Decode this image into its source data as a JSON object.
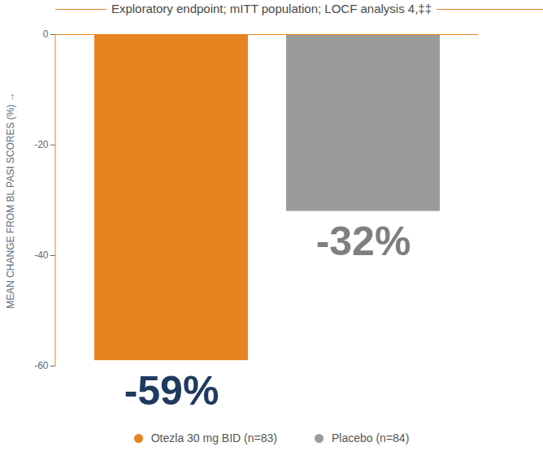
{
  "chart_data": {
    "type": "bar",
    "title": "Exploratory endpoint; mITT population; LOCF analysis 4,‡‡",
    "y_label": "MEAN CHANGE FROM BL PASI SCORES (%)",
    "categories": [
      "Otezla 30 mg BID (n=83)",
      "Placebo (n=84)"
    ],
    "values": [
      -59,
      -32
    ],
    "value_labels": [
      "-59%",
      "-32%"
    ],
    "colors": [
      "#E8841F",
      "#9B9B9B"
    ],
    "ylim": [
      -60,
      0
    ],
    "yticks": [
      0,
      -20,
      -40,
      -60
    ],
    "grid": false,
    "data_labels": true,
    "tick_labels": "y",
    "legend": "bottom"
  }
}
